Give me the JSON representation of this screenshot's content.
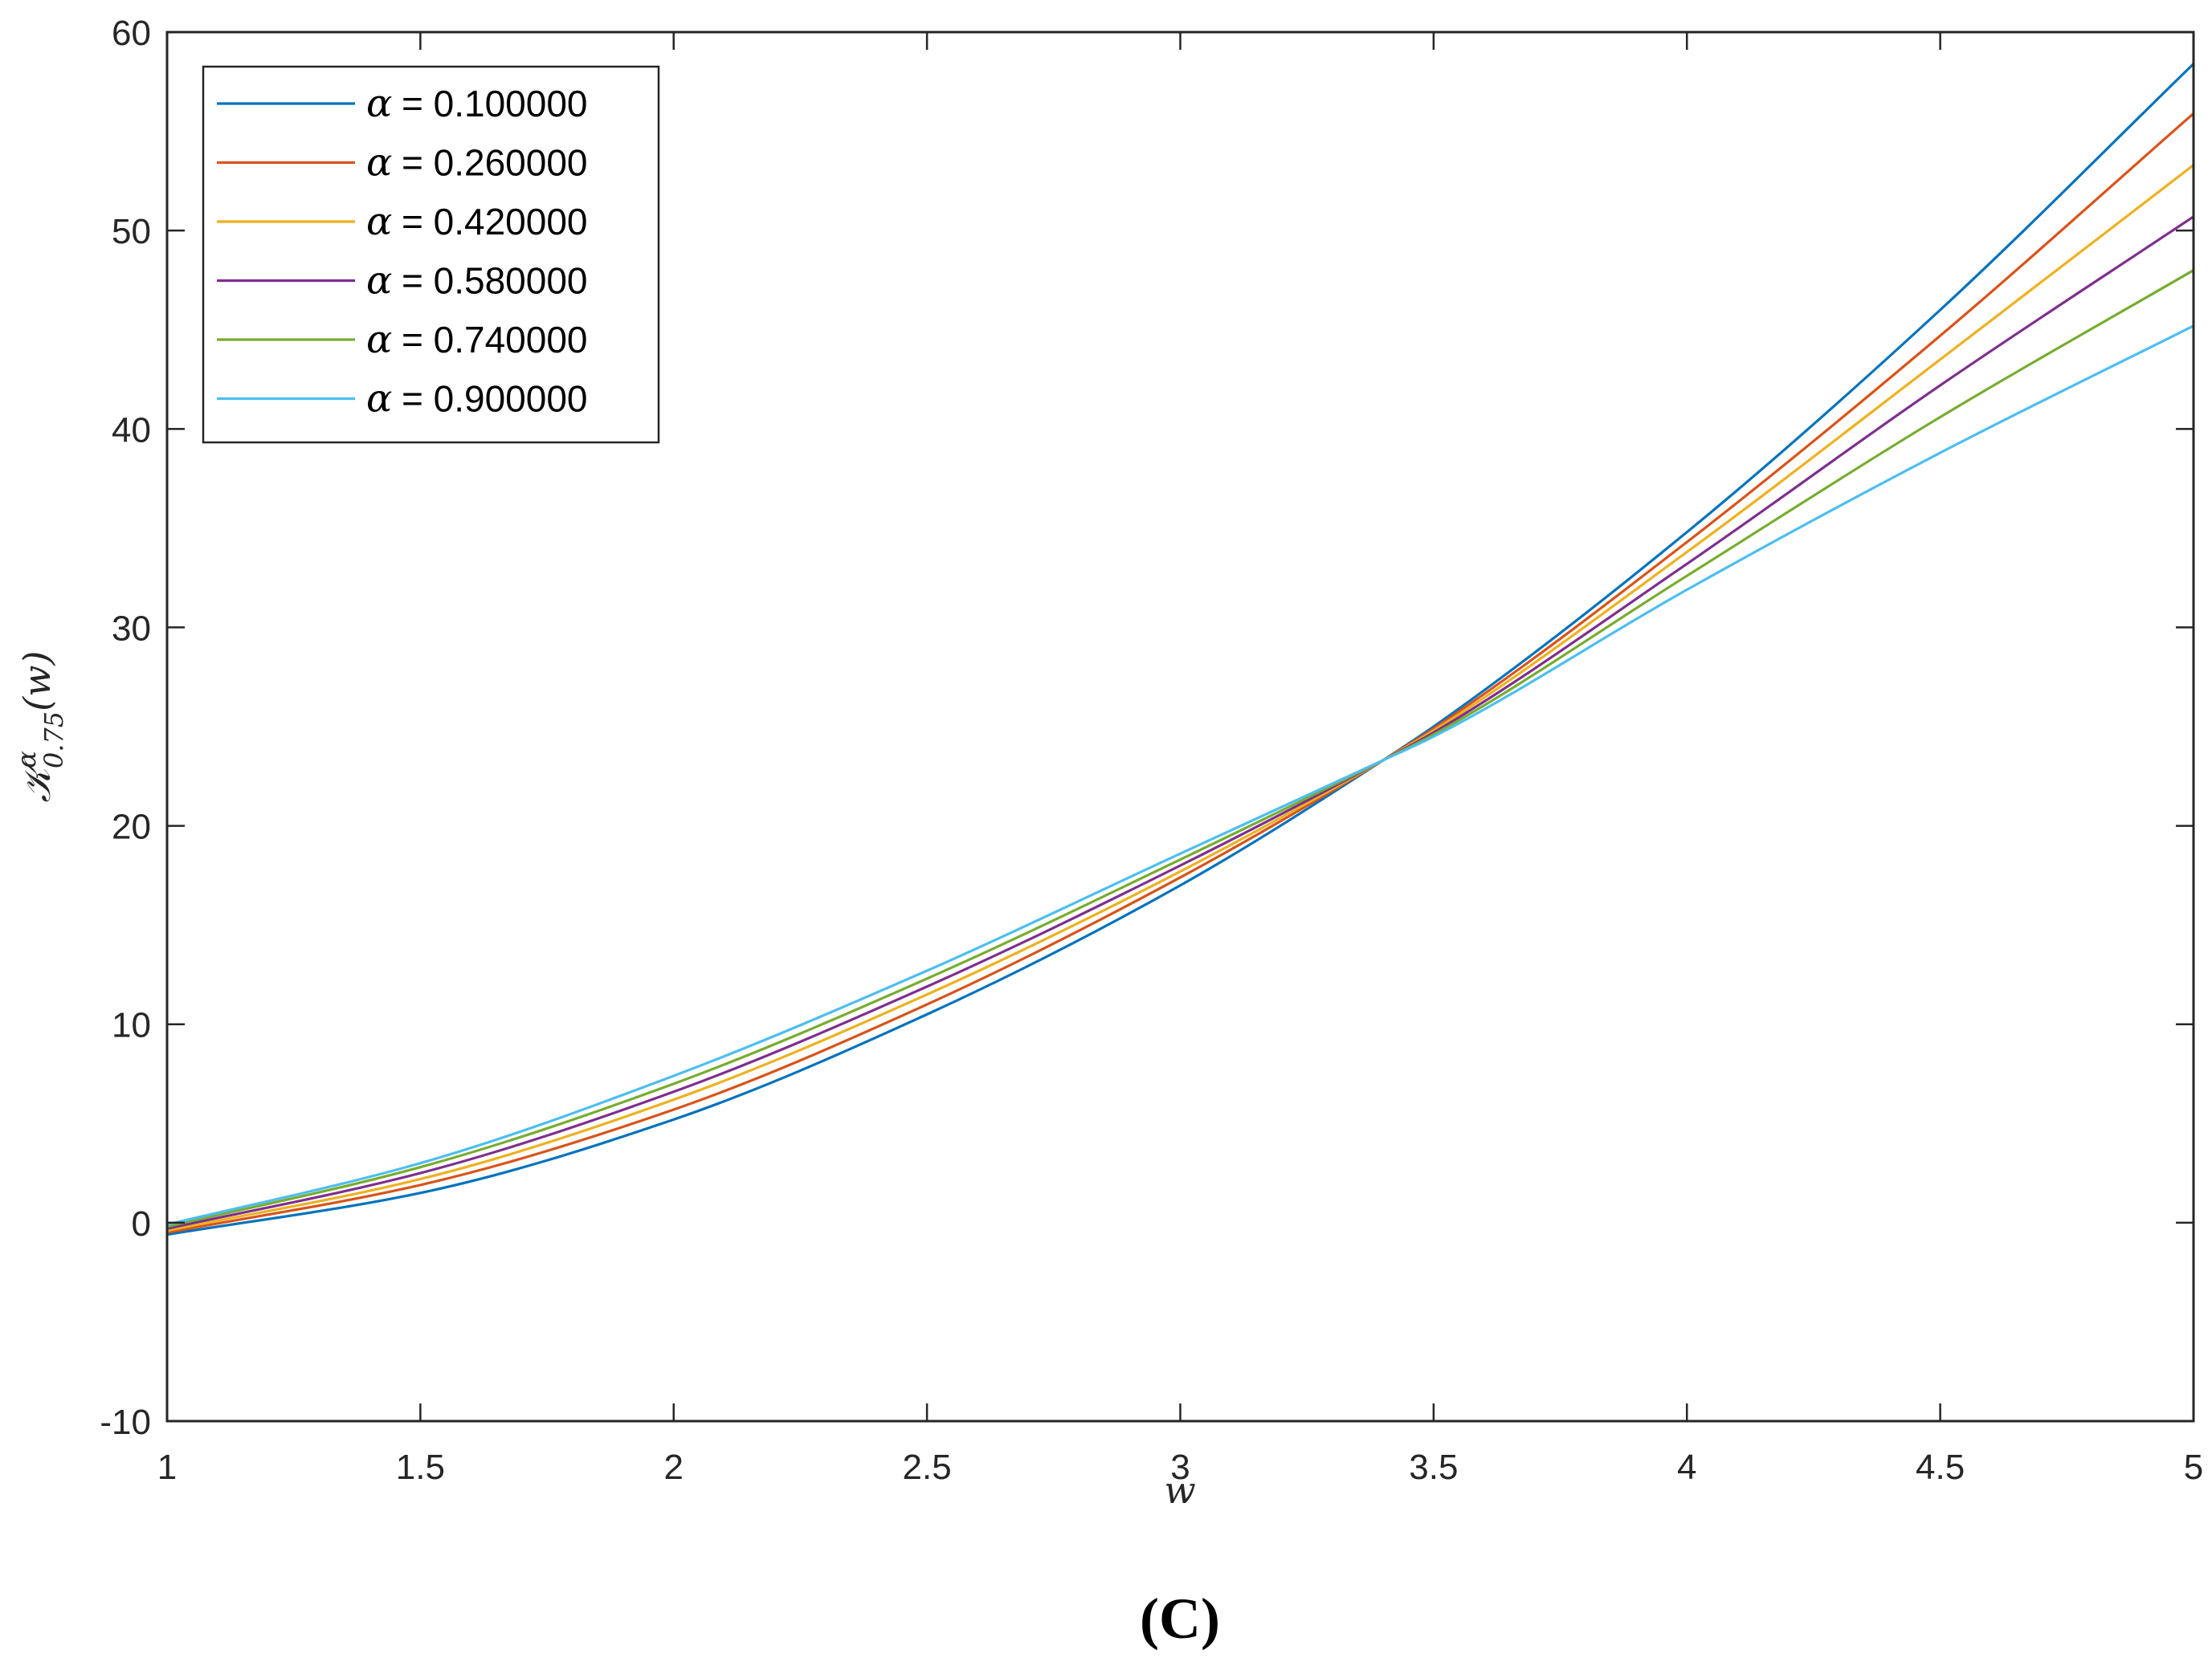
{
  "chart_data": {
    "type": "line",
    "title": "",
    "xlabel": "w",
    "ylabel": "𝒦^α_0.75(w)",
    "ylabel_parts": {
      "main": "𝒦",
      "sup": "α",
      "sub": "0.75",
      "arg": "(w)"
    },
    "xlim": [
      1,
      5
    ],
    "ylim": [
      -10,
      60
    ],
    "xticks": [
      1,
      1.5,
      2,
      2.5,
      3,
      3.5,
      4,
      4.5,
      5
    ],
    "xtick_labels": [
      "1",
      "1.5",
      "2",
      "2.5",
      "3",
      "3.5",
      "4",
      "4.5",
      "5"
    ],
    "yticks": [
      -10,
      0,
      10,
      20,
      30,
      40,
      50,
      60
    ],
    "ytick_labels": [
      "-10",
      "0",
      "10",
      "20",
      "30",
      "40",
      "50",
      "60"
    ],
    "grid": false,
    "legend_position": "top-left",
    "x": [
      1,
      1.5,
      2,
      2.5,
      3,
      3.4,
      3.5,
      4,
      4.5,
      5
    ],
    "series": [
      {
        "name": "α = 0.100000",
        "legend_symbol": "α",
        "legend_value": "= 0.100000",
        "color": "#0072BD",
        "values": [
          -0.6,
          1.5,
          5.2,
          10.5,
          17.0,
          23.3,
          25.0,
          34.8,
          46.0,
          58.4
        ]
      },
      {
        "name": "α = 0.260000",
        "legend_symbol": "α",
        "legend_value": "= 0.260000",
        "color": "#D95319",
        "values": [
          -0.5,
          1.9,
          5.7,
          11.0,
          17.4,
          23.3,
          24.9,
          34.3,
          44.7,
          55.9
        ]
      },
      {
        "name": "α = 0.420000",
        "legend_symbol": "α",
        "legend_value": "= 0.420000",
        "color": "#EDB120",
        "values": [
          -0.4,
          2.2,
          6.2,
          11.5,
          17.7,
          23.3,
          24.8,
          33.8,
          43.5,
          53.3
        ]
      },
      {
        "name": "α = 0.580000",
        "legend_symbol": "α",
        "legend_value": "= 0.580000",
        "color": "#7E2F8E",
        "values": [
          -0.3,
          2.5,
          6.6,
          11.9,
          18.0,
          23.3,
          24.7,
          33.2,
          42.2,
          50.7
        ]
      },
      {
        "name": "α = 0.740000",
        "legend_symbol": "α",
        "legend_value": "= 0.740000",
        "color": "#77AC30",
        "values": [
          -0.2,
          2.8,
          7.0,
          12.3,
          18.3,
          23.3,
          24.6,
          32.6,
          40.6,
          48.0
        ]
      },
      {
        "name": "α = 0.900000",
        "legend_symbol": "α",
        "legend_value": "= 0.900000",
        "color": "#4DBEEE",
        "values": [
          -0.1,
          3.0,
          7.4,
          12.7,
          18.6,
          23.3,
          24.5,
          31.9,
          38.8,
          45.2
        ]
      }
    ]
  },
  "caption": "(C)"
}
